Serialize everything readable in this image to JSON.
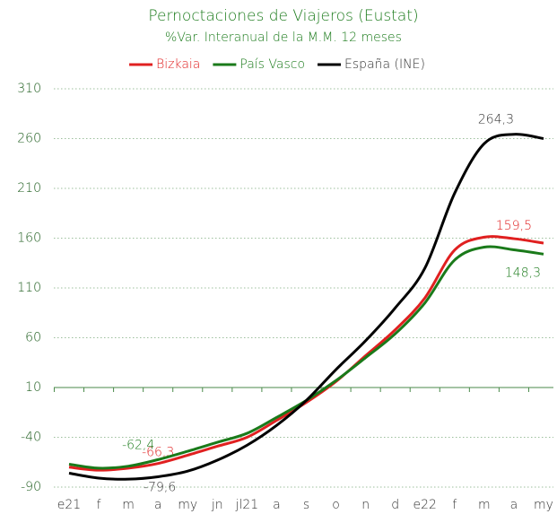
{
  "chart_data": {
    "type": "line",
    "title": "Pernoctaciones de Viajeros (Eustat)",
    "subtitle": "%Var. Interanual de la M.M. 12 meses",
    "categories": [
      "e21",
      "f",
      "m",
      "a",
      "my",
      "jn",
      "jl21",
      "a",
      "s",
      "o",
      "n",
      "d",
      "e22",
      "f",
      "m",
      "a",
      "my"
    ],
    "series": [
      {
        "name": "Bizkaia",
        "color": "#e02020",
        "values": [
          -70,
          -73,
          -71,
          -66.3,
          -58,
          -49,
          -40,
          -23,
          -5,
          16,
          42,
          68,
          100,
          148,
          161,
          159.5,
          155
        ],
        "value_labels": [
          null,
          null,
          null,
          "-66,3",
          null,
          null,
          null,
          null,
          null,
          null,
          null,
          null,
          null,
          null,
          null,
          "159,5",
          null
        ]
      },
      {
        "name": "País Vasco",
        "color": "#1a7a1a",
        "values": [
          -67,
          -71,
          -69,
          -62.4,
          -54,
          -45,
          -36,
          -20,
          -3,
          17,
          40,
          64,
          95,
          138,
          151,
          148.3,
          144
        ],
        "value_labels": [
          null,
          null,
          null,
          "-62,4",
          null,
          null,
          null,
          null,
          null,
          null,
          null,
          null,
          null,
          null,
          null,
          "148,3",
          null
        ]
      },
      {
        "name": "España (INE)",
        "color": "#000000",
        "values": [
          -76,
          -81,
          -82,
          -79.6,
          -74,
          -63,
          -48,
          -28,
          -3,
          28,
          57,
          90,
          130,
          205,
          255,
          264.3,
          260
        ],
        "value_labels": [
          null,
          null,
          null,
          "-79,6",
          null,
          null,
          null,
          null,
          null,
          null,
          null,
          null,
          null,
          null,
          null,
          "264,3",
          null
        ]
      }
    ],
    "ylim": [
      -90,
      310
    ],
    "yticks": [
      -90,
      -40,
      10,
      60,
      110,
      160,
      210,
      260,
      310
    ],
    "grid": true,
    "legend": "top"
  }
}
